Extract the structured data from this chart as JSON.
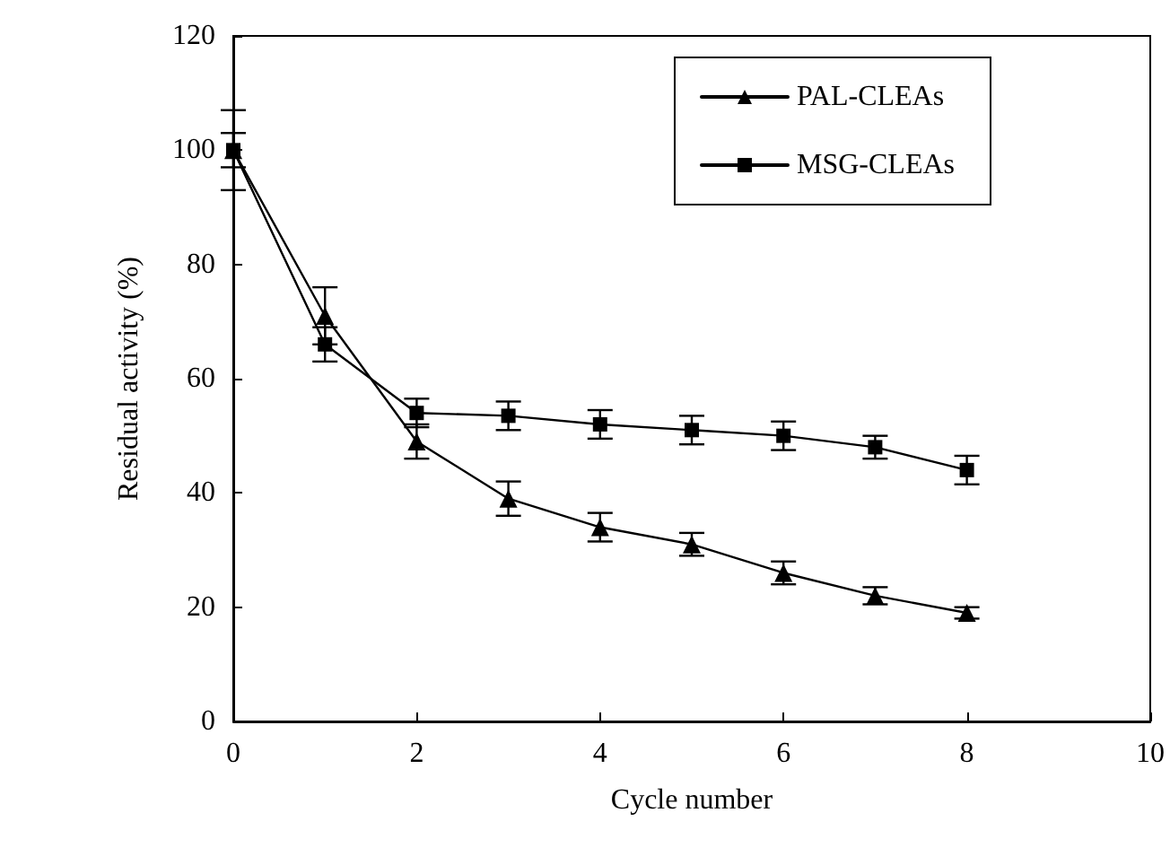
{
  "chart_data": {
    "type": "line",
    "xlabel": "Cycle number",
    "ylabel": "Residual activity (%)",
    "x": [
      0,
      1,
      2,
      3,
      4,
      5,
      6,
      7,
      8
    ],
    "series": [
      {
        "name": "PAL-CLEAs",
        "color": "#000000",
        "marker": "triangle",
        "values": [
          100,
          71,
          49,
          39,
          34,
          31,
          26,
          22,
          19
        ],
        "errors": [
          7,
          5,
          3,
          3,
          2.5,
          2,
          2,
          1.5,
          1
        ]
      },
      {
        "name": "MSG-CLEAs",
        "color": "#000000",
        "marker": "square",
        "values": [
          100,
          66,
          54,
          53.5,
          52,
          51,
          50,
          48,
          44
        ],
        "errors": [
          3,
          3,
          2.5,
          2.5,
          2.5,
          2.5,
          2.5,
          2,
          2.5
        ]
      }
    ],
    "xlim": [
      0,
      10
    ],
    "xticks": [
      0,
      2,
      4,
      6,
      8,
      10
    ],
    "ylim": [
      0,
      120
    ],
    "yticks": [
      0,
      20,
      40,
      60,
      80,
      100,
      120
    ],
    "grid": false,
    "legend": "top right",
    "line_style": "solid"
  }
}
